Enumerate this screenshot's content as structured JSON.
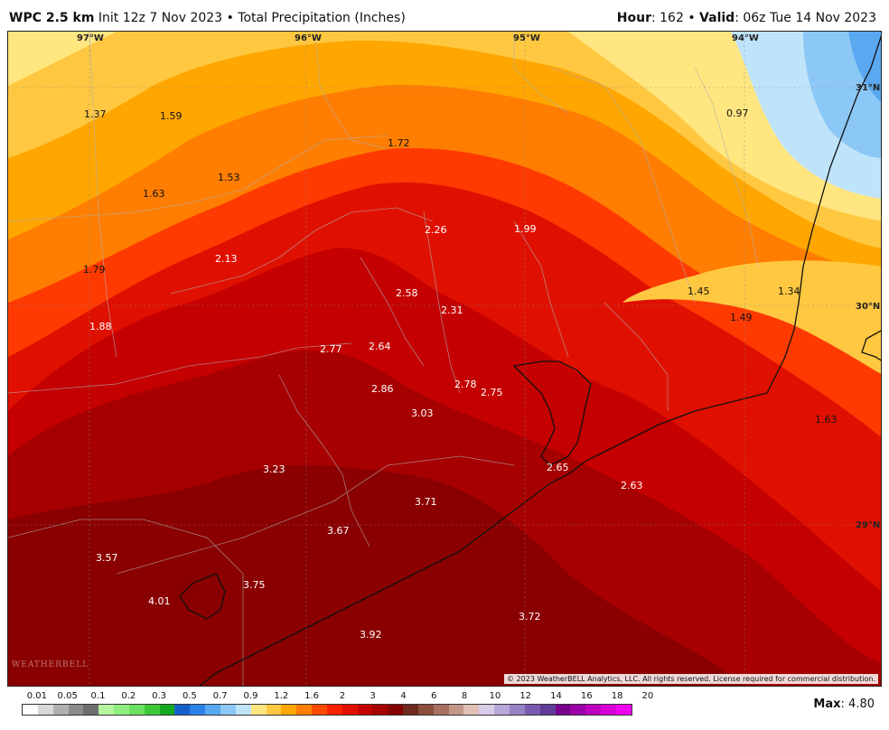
{
  "header": {
    "model": "WPC 2.5 km",
    "init": "Init 12z 7 Nov 2023",
    "bullet": "•",
    "product": "Total Precipitation (Inches)",
    "hour_label": "Hour",
    "hour_value": ": 162",
    "valid_label": "Valid",
    "valid_value": ": 06z Tue 14 Nov 2023"
  },
  "map": {
    "longitude_labels": [
      "97°W",
      "96°W",
      "95°W",
      "94°W"
    ],
    "latitude_labels": [
      "31°N",
      "30°N",
      "29°N"
    ],
    "values": [
      "1.37",
      "1.59",
      "1.53",
      "1.63",
      "1.72",
      "0.97",
      "2.26",
      "1.99",
      "2.13",
      "1.79",
      "2.58",
      "2.31",
      "1.45",
      "1.34",
      "1.49",
      "1.88",
      "2.77",
      "2.64",
      "2.86",
      "2.78",
      "2.75",
      "3.03",
      "1.63",
      "2.65",
      "3.23",
      "2.63",
      "3.71",
      "3.67",
      "3.57",
      "3.75",
      "4.01",
      "3.72",
      "3.92"
    ],
    "copyright": "© 2023 WeatherBELL Analytics, LLC. All rights reserved. License required for commercial distribution.",
    "watermark": "WEATHERBELL"
  },
  "legend": {
    "labels": [
      "0.01",
      "0.05",
      "0.1",
      "0.2",
      "0.3",
      "0.5",
      "0.7",
      "0.9",
      "1.2",
      "1.6",
      "2",
      "3",
      "4",
      "6",
      "8",
      "10",
      "12",
      "14",
      "16",
      "18",
      "20"
    ],
    "colors": [
      "#ffffff",
      "#d8d8d8",
      "#b0b0b0",
      "#8c8c8c",
      "#6e6e6e",
      "#b4f5a0",
      "#90ee80",
      "#6ae060",
      "#3ec83a",
      "#16a821",
      "#1560c8",
      "#2b82e6",
      "#5aa8f0",
      "#8cc8f5",
      "#bfe4fa",
      "#ffe680",
      "#ffc840",
      "#ffa600",
      "#ff7d00",
      "#ff4a00",
      "#ff2000",
      "#e01000",
      "#c40000",
      "#a60000",
      "#850000",
      "#6e2a1e",
      "#8c4e3c",
      "#a87060",
      "#c49888",
      "#e0c0b4",
      "#d8cce8",
      "#b8a8d8",
      "#9682c4",
      "#7a5aae",
      "#603c98",
      "#78008c",
      "#9c00a8",
      "#bc00c0",
      "#d800d8",
      "#f000f0"
    ],
    "max_label": "Max",
    "max_value": ": 4.80"
  }
}
